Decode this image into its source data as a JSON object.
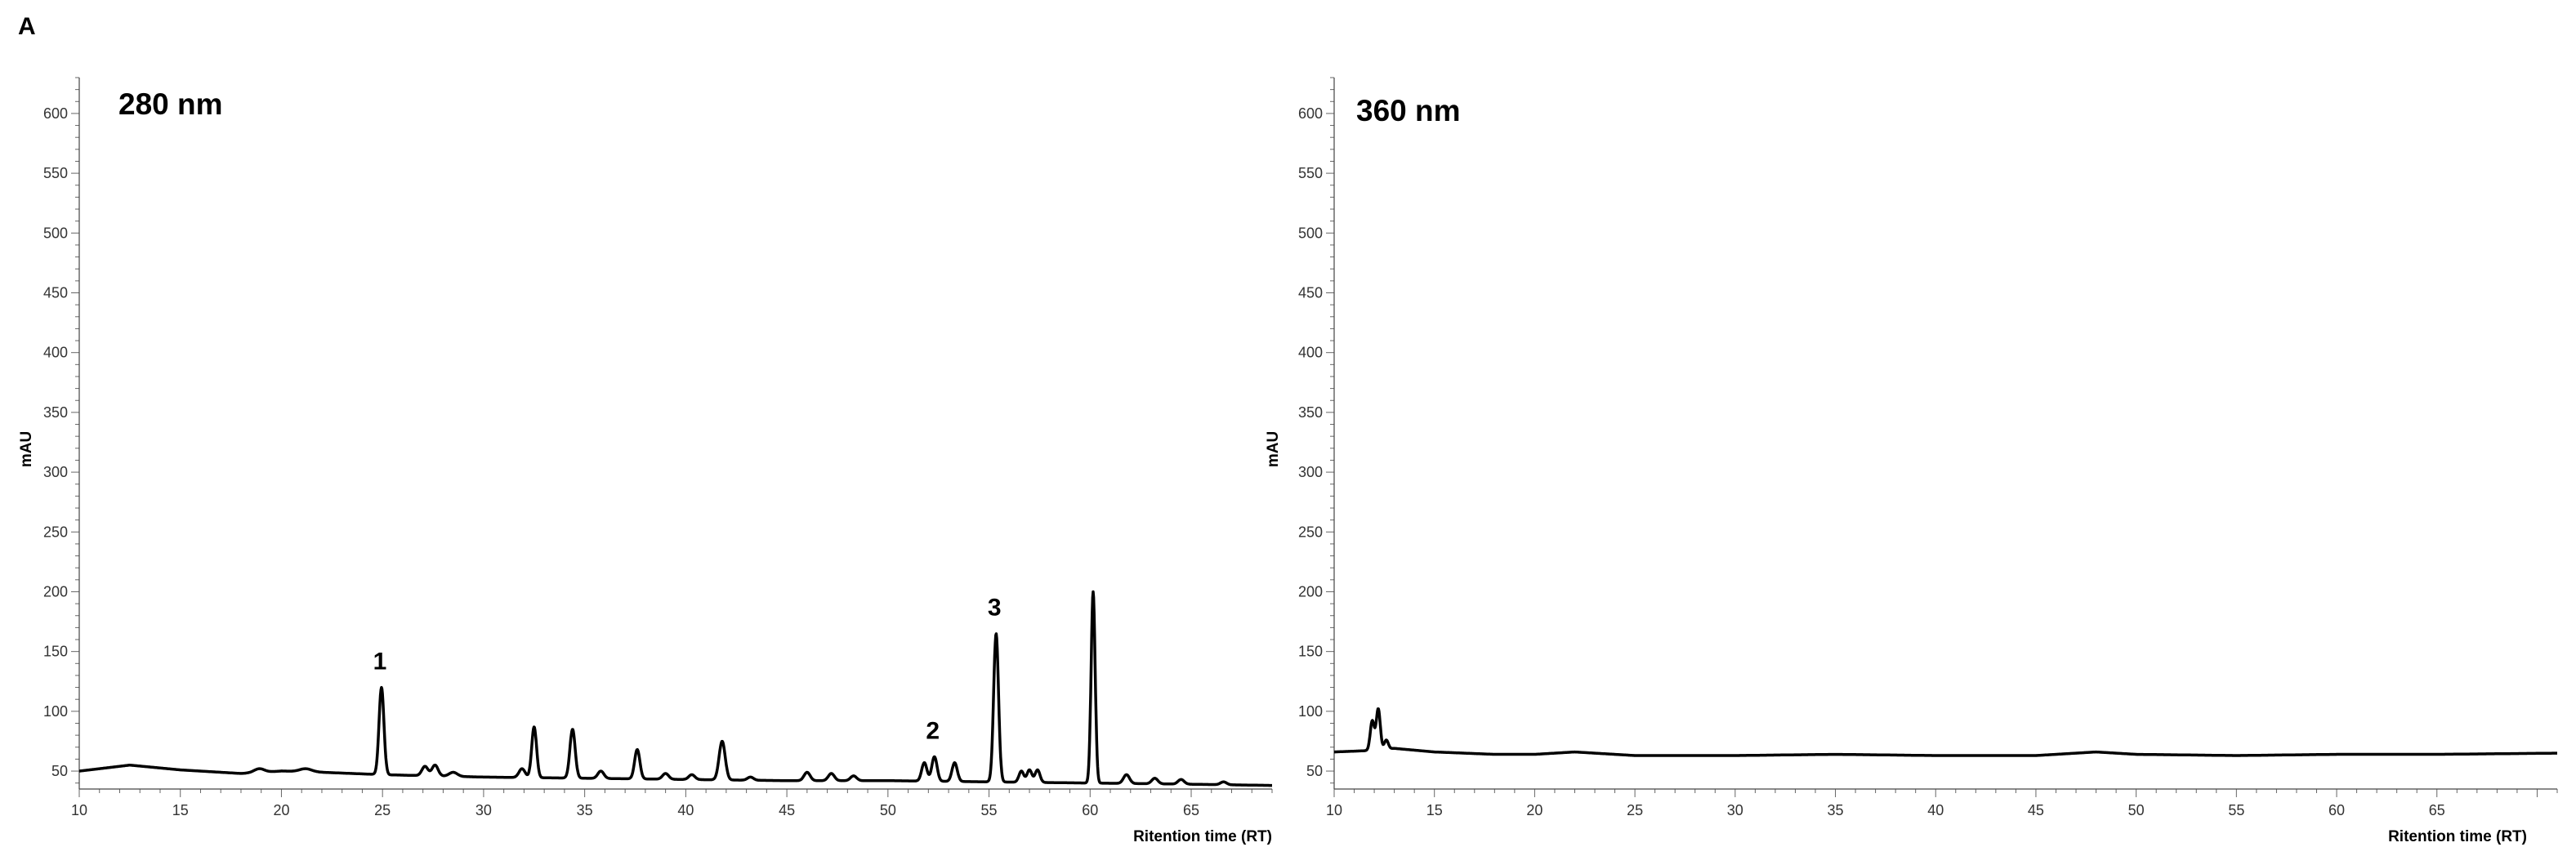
{
  "figure": {
    "panel_letter": "A"
  },
  "chart_data": [
    {
      "type": "line",
      "title": "280 nm",
      "xlabel": "Ritention time (RT)",
      "ylabel": "mAU",
      "xlim": [
        10,
        69
      ],
      "ylim": [
        35,
        630
      ],
      "x_ticks": [
        10,
        15,
        20,
        25,
        30,
        35,
        40,
        45,
        50,
        55,
        60,
        65
      ],
      "y_ticks": [
        50,
        100,
        150,
        200,
        250,
        300,
        350,
        400,
        450,
        500,
        550,
        600
      ],
      "baseline": [
        [
          10,
          50
        ],
        [
          12.5,
          55
        ],
        [
          15,
          51
        ],
        [
          18,
          48
        ],
        [
          20,
          50
        ],
        [
          22,
          49
        ],
        [
          25,
          47
        ],
        [
          30,
          45
        ],
        [
          35,
          44
        ],
        [
          40,
          43
        ],
        [
          45,
          42
        ],
        [
          50,
          42
        ],
        [
          55,
          41
        ],
        [
          60,
          40
        ],
        [
          65,
          39
        ],
        [
          69,
          38
        ]
      ],
      "peaks": [
        {
          "x": 18.9,
          "y": 52,
          "w": 0.25
        },
        {
          "x": 20.2,
          "y": 50,
          "w": 0.25
        },
        {
          "x": 21.2,
          "y": 52,
          "w": 0.3
        },
        {
          "x": 24.95,
          "y": 120,
          "w": 0.12,
          "label": "1"
        },
        {
          "x": 27.1,
          "y": 54,
          "w": 0.15
        },
        {
          "x": 27.6,
          "y": 55,
          "w": 0.15
        },
        {
          "x": 28.5,
          "y": 49,
          "w": 0.2
        },
        {
          "x": 31.9,
          "y": 52,
          "w": 0.15
        },
        {
          "x": 32.5,
          "y": 87,
          "w": 0.12
        },
        {
          "x": 34.4,
          "y": 85,
          "w": 0.13
        },
        {
          "x": 35.8,
          "y": 50,
          "w": 0.15
        },
        {
          "x": 37.6,
          "y": 68,
          "w": 0.13
        },
        {
          "x": 39.0,
          "y": 48,
          "w": 0.15
        },
        {
          "x": 40.3,
          "y": 47,
          "w": 0.15
        },
        {
          "x": 41.8,
          "y": 75,
          "w": 0.15
        },
        {
          "x": 43.2,
          "y": 45,
          "w": 0.15
        },
        {
          "x": 46.0,
          "y": 49,
          "w": 0.15
        },
        {
          "x": 47.2,
          "y": 48,
          "w": 0.15
        },
        {
          "x": 48.3,
          "y": 46,
          "w": 0.15
        },
        {
          "x": 51.8,
          "y": 57,
          "w": 0.13
        },
        {
          "x": 52.3,
          "y": 62,
          "w": 0.13,
          "label": "2"
        },
        {
          "x": 53.3,
          "y": 57,
          "w": 0.13
        },
        {
          "x": 55.35,
          "y": 165,
          "w": 0.12,
          "label": "3"
        },
        {
          "x": 56.6,
          "y": 50,
          "w": 0.12
        },
        {
          "x": 57.0,
          "y": 51,
          "w": 0.12
        },
        {
          "x": 57.4,
          "y": 51,
          "w": 0.12
        },
        {
          "x": 60.15,
          "y": 200,
          "w": 0.1
        },
        {
          "x": 61.8,
          "y": 47,
          "w": 0.15
        },
        {
          "x": 63.2,
          "y": 44,
          "w": 0.15
        },
        {
          "x": 64.5,
          "y": 43,
          "w": 0.15
        },
        {
          "x": 66.6,
          "y": 41,
          "w": 0.15
        }
      ]
    },
    {
      "type": "line",
      "title": "360 nm",
      "xlabel": "Ritention time (RT)",
      "ylabel": "mAU",
      "xlim": [
        10,
        71
      ],
      "ylim": [
        35,
        630
      ],
      "x_ticks": [
        10,
        15,
        20,
        25,
        30,
        35,
        40,
        45,
        50,
        55,
        60,
        65
      ],
      "y_ticks": [
        50,
        100,
        150,
        200,
        250,
        300,
        350,
        400,
        450,
        500,
        550,
        600
      ],
      "baseline": [
        [
          10,
          66
        ],
        [
          11.5,
          67
        ],
        [
          13,
          69
        ],
        [
          15,
          66
        ],
        [
          18,
          64
        ],
        [
          20,
          64
        ],
        [
          22,
          66
        ],
        [
          25,
          63
        ],
        [
          30,
          63
        ],
        [
          35,
          64
        ],
        [
          40,
          63
        ],
        [
          45,
          63
        ],
        [
          48,
          66
        ],
        [
          50,
          64
        ],
        [
          55,
          63
        ],
        [
          60,
          64
        ],
        [
          65,
          64
        ],
        [
          71,
          65
        ]
      ],
      "peaks": [
        {
          "x": 11.9,
          "y": 92,
          "w": 0.1
        },
        {
          "x": 12.2,
          "y": 102,
          "w": 0.1
        },
        {
          "x": 12.6,
          "y": 76,
          "w": 0.1
        }
      ]
    }
  ]
}
